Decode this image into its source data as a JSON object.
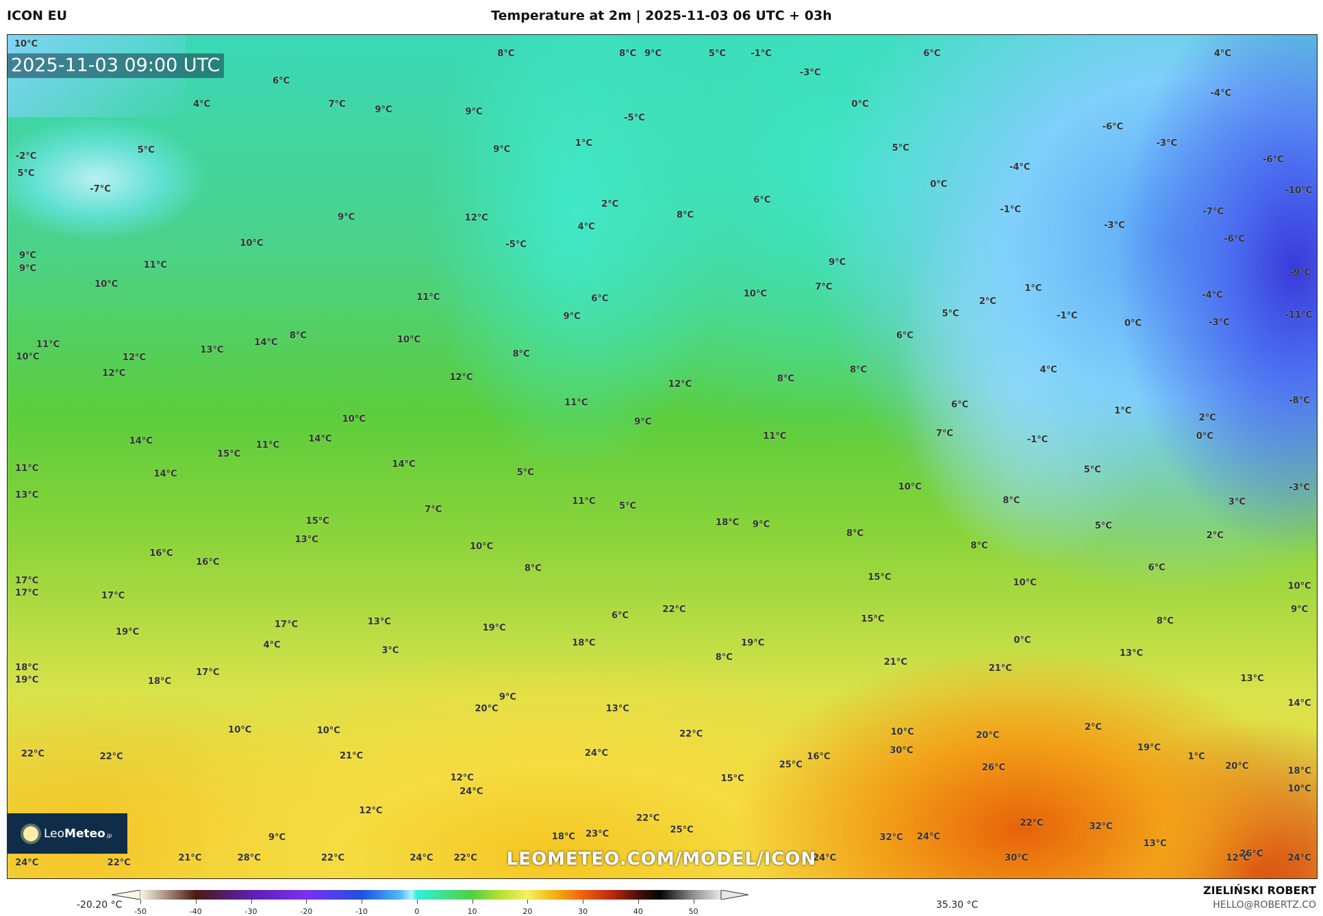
{
  "header": {
    "model": "ICON EU",
    "title": "Temperature at 2m | 2025-11-03 06 UTC + 03h"
  },
  "map": {
    "valid_time": "2025-11-03 09:00 UTC",
    "watermark": "LEOMETEO.COM/MODEL/ICON",
    "logo": {
      "prefix": "Leo",
      "bold": "Meteo",
      "suffix": ".jp",
      "icon": "sun-icon"
    },
    "labels": [
      "10°C",
      "8°C",
      "8°C",
      "9°C",
      "5°C",
      "-1°C",
      "6°C",
      "4°C",
      "6°C",
      "-3°C",
      "4°C",
      "7°C",
      "9°C",
      "9°C",
      "0°C",
      "-4°C",
      "-5°C",
      "-6°C",
      "-3°C",
      "5°C",
      "9°C",
      "1°C",
      "5°C",
      "-2°C",
      "5°C",
      "-7°C",
      "0°C",
      "-4°C",
      "-6°C",
      "-10°C",
      "2°C",
      "6°C",
      "12°C",
      "4°C",
      "8°C",
      "-1°C",
      "-7°C",
      "9°C",
      "-3°C",
      "-6°C",
      "10°C",
      "-5°C",
      "9°C",
      "9°C",
      "11°C",
      "9°C",
      "-9°C",
      "10°C",
      "11°C",
      "6°C",
      "10°C",
      "7°C",
      "1°C",
      "2°C",
      "-4°C",
      "9°C",
      "5°C",
      "-1°C",
      "0°C",
      "-3°C",
      "-11°C",
      "8°C",
      "14°C",
      "10°C",
      "6°C",
      "11°C",
      "10°C",
      "13°C",
      "12°C",
      "8°C",
      "12°C",
      "12°C",
      "8°C",
      "8°C",
      "4°C",
      "12°C",
      "11°C",
      "6°C",
      "-8°C",
      "1°C",
      "2°C",
      "10°C",
      "9°C",
      "7°C",
      "11°C",
      "-1°C",
      "0°C",
      "14°C",
      "14°C",
      "11°C",
      "15°C",
      "14°C",
      "5°C",
      "11°C",
      "14°C",
      "5°C",
      "13°C",
      "10°C",
      "8°C",
      "3°C",
      "-3°C",
      "7°C",
      "11°C",
      "5°C",
      "15°C",
      "18°C",
      "9°C",
      "5°C",
      "13°C",
      "8°C",
      "2°C",
      "8°C",
      "10°C",
      "16°C",
      "16°C",
      "6°C",
      "8°C",
      "15°C",
      "17°C",
      "17°C",
      "10°C",
      "10°C",
      "17°C",
      "22°C",
      "9°C",
      "6°C",
      "15°C",
      "13°C",
      "8°C",
      "17°C",
      "19°C",
      "19°C",
      "18°C",
      "19°C",
      "0°C",
      "4°C",
      "3°C",
      "13°C",
      "8°C",
      "21°C",
      "21°C",
      "18°C",
      "19°C",
      "17°C",
      "18°C",
      "13°C",
      "9°C",
      "20°C",
      "13°C",
      "14°C",
      "10°C",
      "10°C",
      "2°C",
      "10°C",
      "20°C",
      "22°C",
      "22°C",
      "22°C",
      "21°C",
      "24°C",
      "30°C",
      "16°C",
      "25°C",
      "19°C",
      "1°C",
      "26°C",
      "20°C",
      "18°C",
      "12°C",
      "15°C",
      "24°C",
      "10°C",
      "12°C",
      "22°C",
      "22°C",
      "25°C",
      "32°C",
      "13°C",
      "9°C",
      "18°C",
      "23°C",
      "32°C",
      "24°C",
      "26°C",
      "24°C",
      "22°C",
      "21°C",
      "28°C",
      "22°C",
      "24°C",
      "22°C",
      "24°C",
      "30°C",
      "12°C",
      "24°C"
    ]
  },
  "colorbar": {
    "min_label": "-20.20 °C",
    "max_label": "35.30 °C",
    "ticks": [
      "-50",
      "-40",
      "-30",
      "-20",
      "-10",
      "0",
      "10",
      "20",
      "30",
      "40",
      "50"
    ],
    "range": [
      -50,
      55
    ],
    "colors": {
      "-50": "#fbf6e6",
      "-40": "#4a1a10",
      "-30": "#5a20b0",
      "-20": "#7a30f0",
      "-10": "#2050e0",
      "-3": "#50b8f8",
      "-1": "#b0f0ff",
      "0": "#30f0d8",
      "10": "#50d040",
      "15": "#b8e030",
      "20": "#f5f060",
      "25": "#f5b010",
      "30": "#f06010",
      "35": "#c02a10",
      "40": "#4a1008",
      "44": "#050505",
      "50": "#909090",
      "55": "#e8e8e8"
    }
  },
  "footer": {
    "author": "ZIELIŃSKI ROBERT",
    "email": "HELLO@ROBERTZ.CO"
  }
}
